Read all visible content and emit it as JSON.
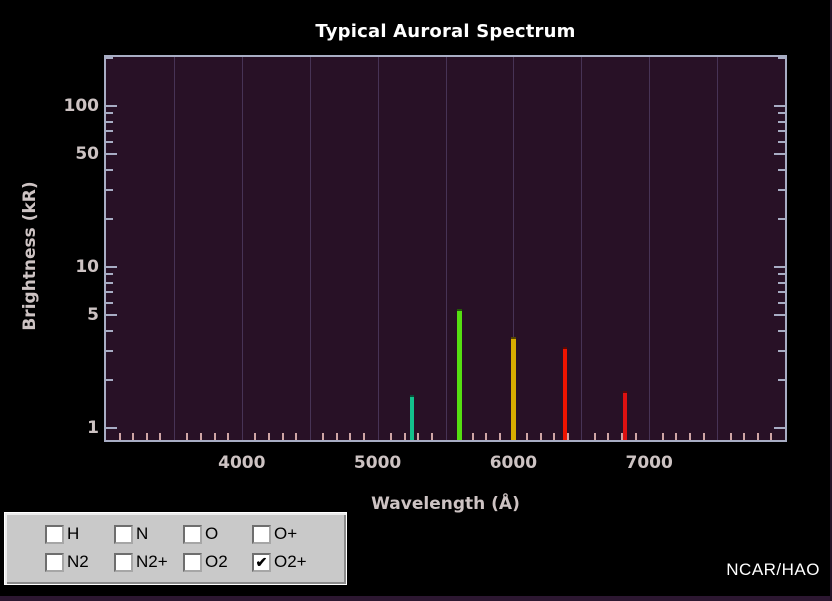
{
  "credit": "NCAR/HAO",
  "chart_data": {
    "type": "bar",
    "subtype": "emission-line-spectrum",
    "title": "Typical Auroral Spectrum",
    "xlabel": "Wavelength (Å)",
    "ylabel": "Brightness (kR)",
    "yscale": "log",
    "xlim": [
      3000,
      8000
    ],
    "ylim": [
      0.85,
      200
    ],
    "x_tick_labels": [
      4000,
      5000,
      6000,
      7000
    ],
    "x_gridline_step": 500,
    "x_minor_tick_step": 100,
    "y_labeled_ticks": [
      1,
      5,
      10,
      50,
      100
    ],
    "grid": "vertical-only",
    "legend_position": "none",
    "series": [
      {
        "name": "O2+",
        "lines": [
          {
            "wavelength_A": 5250,
            "brightness_kR": 1.6,
            "color": "#13c18c",
            "width": 4
          },
          {
            "wavelength_A": 5600,
            "brightness_kR": 5.5,
            "color": "#55dd11",
            "width": 5
          },
          {
            "wavelength_A": 6000,
            "brightness_kR": 3.7,
            "color": "#d8ac00",
            "width": 5
          },
          {
            "wavelength_A": 6380,
            "brightness_kR": 3.2,
            "color": "#ee1400",
            "width": 4
          },
          {
            "wavelength_A": 6820,
            "brightness_kR": 1.7,
            "color": "#dd1111",
            "width": 4
          }
        ]
      }
    ],
    "colors": {
      "plot_bg": "#281126",
      "gridline": "#473355",
      "axis_border": "#a8adc4",
      "tick_label": "#cdc3c3",
      "x_minor_tick": "#cfa5a5",
      "title": "#ffffff"
    }
  },
  "controls": {
    "rows": [
      [
        {
          "label": "H",
          "checked": false
        },
        {
          "label": "N",
          "checked": false
        },
        {
          "label": "O",
          "checked": false
        },
        {
          "label": "O+",
          "checked": false
        }
      ],
      [
        {
          "label": "N2",
          "checked": false
        },
        {
          "label": "N2+",
          "checked": false
        },
        {
          "label": "O2",
          "checked": false
        },
        {
          "label": "O2+",
          "checked": true
        }
      ]
    ]
  }
}
